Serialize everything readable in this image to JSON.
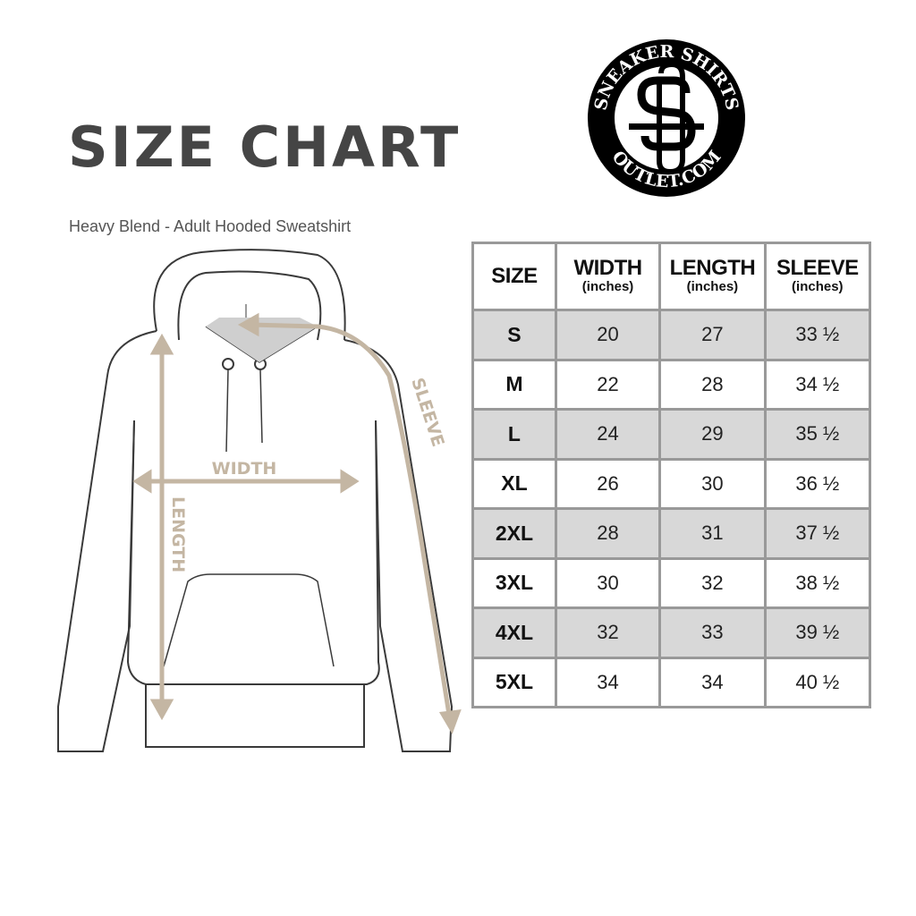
{
  "header": {
    "title": "SIZE CHART",
    "subtitle": "Heavy Blend - Adult Hooded Sweatshirt"
  },
  "logo": {
    "top_text": "SNEAKER SHIRTS",
    "bottom_text": "OUTLET.COM",
    "monogram": "SS"
  },
  "diagram": {
    "labels": {
      "width": "WIDTH",
      "length": "LENGTH",
      "sleeve": "SLEEVE"
    },
    "measure_color": "#c4b6a3",
    "outline_color": "#3a3a3a"
  },
  "table": {
    "columns": [
      {
        "label": "SIZE",
        "unit": ""
      },
      {
        "label": "WIDTH",
        "unit": "(inches)"
      },
      {
        "label": "LENGTH",
        "unit": "(inches)"
      },
      {
        "label": "SLEEVE",
        "unit": "(inches)"
      }
    ],
    "rows": [
      [
        "S",
        "20",
        "27",
        "33 ½"
      ],
      [
        "M",
        "22",
        "28",
        "34 ½"
      ],
      [
        "L",
        "24",
        "29",
        "35 ½"
      ],
      [
        "XL",
        "26",
        "30",
        "36 ½"
      ],
      [
        "2XL",
        "28",
        "31",
        "37 ½"
      ],
      [
        "3XL",
        "30",
        "32",
        "38 ½"
      ],
      [
        "4XL",
        "32",
        "33",
        "39 ½"
      ],
      [
        "5XL",
        "34",
        "34",
        "40 ½"
      ]
    ],
    "stripe_color": "#d8d8d8",
    "border_color": "#999999"
  }
}
